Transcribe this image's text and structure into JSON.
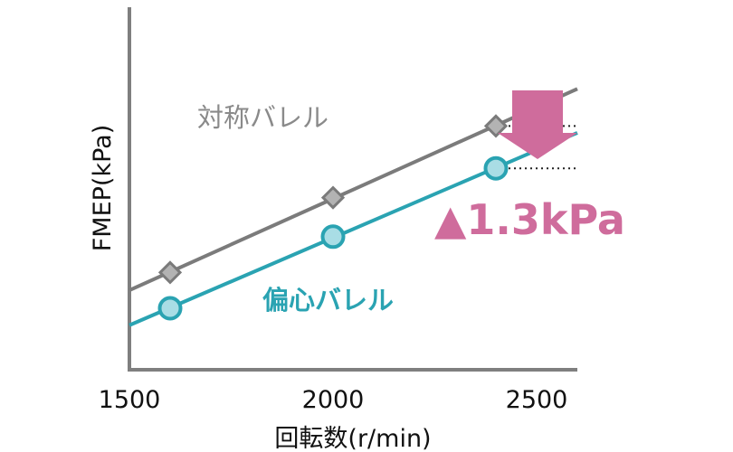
{
  "chart_data": {
    "type": "scatter",
    "title": "",
    "xlabel": "回転数(r/min)",
    "ylabel": "FMEP(kPa)",
    "xlim": [
      1500,
      2600
    ],
    "x_ticks": [
      "1500",
      "2000",
      "2500"
    ],
    "y_ticks_shown": false,
    "grid": false,
    "series": [
      {
        "name": "対称バレル",
        "color": "#7b7b7b",
        "marker": "diamond",
        "x": [
          1600,
          2000,
          2400
        ],
        "y": [
          1.1,
          3.4,
          5.6
        ]
      },
      {
        "name": "偏心バレル",
        "color": "#2aa3b2",
        "marker": "circle",
        "x": [
          1600,
          2000,
          2400
        ],
        "y": [
          0.0,
          2.2,
          4.3
        ]
      }
    ],
    "annotation": {
      "text": "▲1.3kPa",
      "color": "#cf6c9c",
      "arrow": "down-arrow"
    }
  }
}
